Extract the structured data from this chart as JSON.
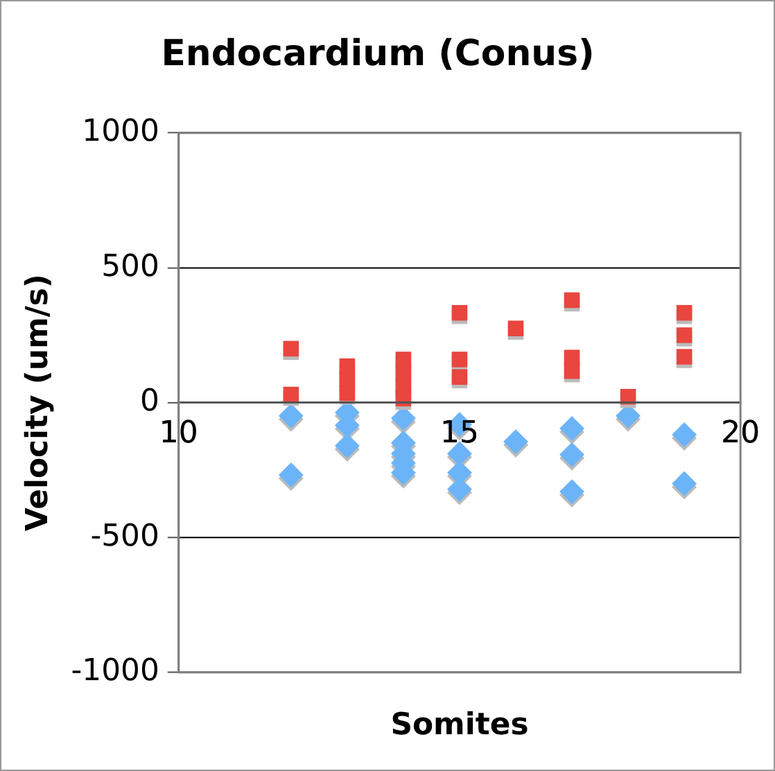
{
  "chart_data": {
    "type": "scatter",
    "title": "Endocardium (Conus)",
    "xlabel": "Somites",
    "ylabel": "Velocity (um/s)",
    "xlim": [
      10,
      20
    ],
    "xticks": [
      10,
      15,
      20
    ],
    "ylim": [
      -1000,
      1000
    ],
    "yticks": [
      -1000,
      -500,
      0,
      500,
      1000
    ],
    "grid": "y",
    "legend": false,
    "series": [
      {
        "color": "#e8463e",
        "marker": "square",
        "x": [
          12,
          12,
          13,
          13,
          13,
          14,
          14,
          14,
          14,
          15,
          15,
          15,
          16,
          17,
          17,
          17,
          18,
          19,
          19,
          19
        ],
        "values": [
          200,
          30,
          135,
          85,
          35,
          160,
          110,
          60,
          15,
          333,
          160,
          95,
          275,
          380,
          167,
          117,
          22,
          333,
          250,
          170
        ]
      },
      {
        "color": "#6cb4f8",
        "marker": "diamond",
        "x": [
          12,
          12,
          13,
          13,
          13,
          14,
          14,
          14,
          14,
          14,
          15,
          15,
          15,
          15,
          16,
          17,
          17,
          17,
          18,
          19,
          19
        ],
        "values": [
          -49,
          -268,
          -37,
          -84,
          -160,
          -58,
          -149,
          -189,
          -224,
          -260,
          -81,
          -189,
          -260,
          -321,
          -145,
          -96,
          -193,
          -330,
          -49,
          -119,
          -300
        ]
      }
    ]
  }
}
